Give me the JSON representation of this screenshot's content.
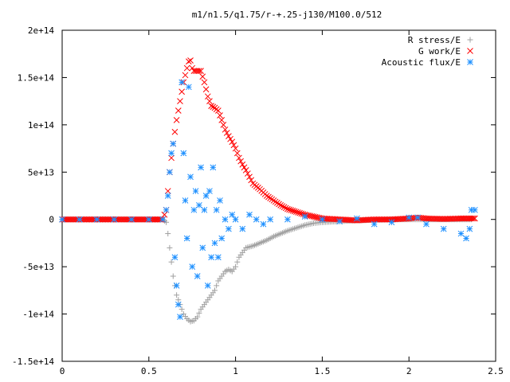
{
  "chart_data": {
    "type": "scatter",
    "title": "m1/n1.5/q1.75/r-+.25-j130/M100.0/512",
    "xlabel": "",
    "ylabel": "",
    "xlim": [
      0,
      2.5
    ],
    "ylim": [
      -150000000000000.0,
      200000000000000.0
    ],
    "x_ticks": [
      0,
      0.5,
      1,
      1.5,
      2,
      2.5
    ],
    "x_tick_labels": [
      "0",
      "0.5",
      "1",
      "1.5",
      "2",
      "2.5"
    ],
    "y_ticks": [
      -150000000000000.0,
      -100000000000000.0,
      -50000000000000.0,
      0,
      50000000000000.0,
      100000000000000.0,
      150000000000000.0,
      200000000000000.0
    ],
    "y_tick_labels": [
      "-1.5e+14",
      "-1e+14",
      "-5e+13",
      "0",
      "5e+13",
      "1e+14",
      "1.5e+14",
      "2e+14"
    ],
    "grid": false,
    "legend_position": "top-right",
    "series": [
      {
        "name": "R stress/E",
        "marker": "plus",
        "color": "#a0a0a0",
        "points": [
          [
            0.0,
            0
          ],
          [
            0.1,
            0
          ],
          [
            0.2,
            0
          ],
          [
            0.3,
            0
          ],
          [
            0.4,
            0
          ],
          [
            0.5,
            0
          ],
          [
            0.58,
            0
          ],
          [
            0.6,
            -3000000000000.0
          ],
          [
            0.61,
            -15000000000000.0
          ],
          [
            0.62,
            -30000000000000.0
          ],
          [
            0.63,
            -45000000000000.0
          ],
          [
            0.64,
            -60000000000000.0
          ],
          [
            0.65,
            -70000000000000.0
          ],
          [
            0.66,
            -80000000000000.0
          ],
          [
            0.68,
            -90000000000000.0
          ],
          [
            0.7,
            -100000000000000.0
          ],
          [
            0.72,
            -105000000000000.0
          ],
          [
            0.74,
            -108000000000000.0
          ],
          [
            0.76,
            -107000000000000.0
          ],
          [
            0.78,
            -103000000000000.0
          ],
          [
            0.8,
            -95000000000000.0
          ],
          [
            0.82,
            -90000000000000.0
          ],
          [
            0.84,
            -85000000000000.0
          ],
          [
            0.86,
            -80000000000000.0
          ],
          [
            0.88,
            -75000000000000.0
          ],
          [
            0.9,
            -65000000000000.0
          ],
          [
            0.92,
            -60000000000000.0
          ],
          [
            0.94,
            -55000000000000.0
          ],
          [
            0.96,
            -53000000000000.0
          ],
          [
            0.98,
            -55000000000000.0
          ],
          [
            1.0,
            -50000000000000.0
          ],
          [
            1.02,
            -40000000000000.0
          ],
          [
            1.04,
            -35000000000000.0
          ],
          [
            1.06,
            -30000000000000.0
          ],
          [
            1.1,
            -28000000000000.0
          ],
          [
            1.14,
            -25000000000000.0
          ],
          [
            1.18,
            -22000000000000.0
          ],
          [
            1.22,
            -18000000000000.0
          ],
          [
            1.26,
            -15000000000000.0
          ],
          [
            1.3,
            -12000000000000.0
          ],
          [
            1.35,
            -9000000000000.0
          ],
          [
            1.4,
            -6000000000000.0
          ],
          [
            1.45,
            -4000000000000.0
          ],
          [
            1.5,
            -3000000000000.0
          ],
          [
            1.6,
            -2000000000000.0
          ],
          [
            1.7,
            -1000000000000.0
          ],
          [
            1.8,
            -500000000000.0
          ],
          [
            1.9,
            0
          ],
          [
            2.0,
            0
          ],
          [
            2.1,
            0
          ],
          [
            2.2,
            0
          ],
          [
            2.3,
            0
          ],
          [
            2.36,
            0
          ]
        ]
      },
      {
        "name": "G work/E",
        "marker": "cross",
        "color": "#ff0000",
        "points": [
          [
            0.0,
            0
          ],
          [
            0.1,
            0
          ],
          [
            0.2,
            0
          ],
          [
            0.3,
            0
          ],
          [
            0.4,
            0
          ],
          [
            0.5,
            0
          ],
          [
            0.58,
            0
          ],
          [
            0.6,
            10000000000000.0
          ],
          [
            0.61,
            30000000000000.0
          ],
          [
            0.62,
            50000000000000.0
          ],
          [
            0.64,
            80000000000000.0
          ],
          [
            0.66,
            105000000000000.0
          ],
          [
            0.68,
            125000000000000.0
          ],
          [
            0.7,
            145000000000000.0
          ],
          [
            0.72,
            160000000000000.0
          ],
          [
            0.73,
            167000000000000.0
          ],
          [
            0.74,
            168000000000000.0
          ],
          [
            0.75,
            160000000000000.0
          ],
          [
            0.76,
            157000000000000.0
          ],
          [
            0.78,
            157000000000000.0
          ],
          [
            0.8,
            157000000000000.0
          ],
          [
            0.82,
            145000000000000.0
          ],
          [
            0.84,
            130000000000000.0
          ],
          [
            0.86,
            120000000000000.0
          ],
          [
            0.88,
            118000000000000.0
          ],
          [
            0.9,
            115000000000000.0
          ],
          [
            0.92,
            105000000000000.0
          ],
          [
            0.94,
            95000000000000.0
          ],
          [
            0.96,
            88000000000000.0
          ],
          [
            0.98,
            82000000000000.0
          ],
          [
            1.0,
            75000000000000.0
          ],
          [
            1.02,
            65000000000000.0
          ],
          [
            1.04,
            58000000000000.0
          ],
          [
            1.06,
            52000000000000.0
          ],
          [
            1.08,
            45000000000000.0
          ],
          [
            1.1,
            38000000000000.0
          ],
          [
            1.14,
            32000000000000.0
          ],
          [
            1.18,
            25000000000000.0
          ],
          [
            1.22,
            20000000000000.0
          ],
          [
            1.26,
            15000000000000.0
          ],
          [
            1.3,
            11000000000000.0
          ],
          [
            1.35,
            8000000000000.0
          ],
          [
            1.4,
            5000000000000.0
          ],
          [
            1.45,
            3000000000000.0
          ],
          [
            1.5,
            1000000000000.0
          ],
          [
            1.6,
            0
          ],
          [
            1.7,
            -1000000000000.0
          ],
          [
            1.8,
            0
          ],
          [
            1.9,
            0
          ],
          [
            2.0,
            1000000000000.0
          ],
          [
            2.05,
            2000000000000.0
          ],
          [
            2.1,
            1000000000000.0
          ],
          [
            2.2,
            500000000000.0
          ],
          [
            2.3,
            1000000000000.0
          ],
          [
            2.38,
            1000000000000.0
          ]
        ]
      },
      {
        "name": "Acoustic flux/E",
        "marker": "star",
        "color": "#1e90ff",
        "points": [
          [
            0.0,
            0
          ],
          [
            0.1,
            0
          ],
          [
            0.2,
            0
          ],
          [
            0.3,
            0
          ],
          [
            0.4,
            0
          ],
          [
            0.5,
            0
          ],
          [
            0.58,
            0
          ],
          [
            0.6,
            10000000000000.0
          ],
          [
            0.61,
            25000000000000.0
          ],
          [
            0.62,
            50000000000000.0
          ],
          [
            0.63,
            70000000000000.0
          ],
          [
            0.64,
            80000000000000.0
          ],
          [
            0.65,
            -40000000000000.0
          ],
          [
            0.66,
            -70000000000000.0
          ],
          [
            0.67,
            -90000000000000.0
          ],
          [
            0.68,
            -103000000000000.0
          ],
          [
            0.69,
            145000000000000.0
          ],
          [
            0.7,
            70000000000000.0
          ],
          [
            0.71,
            20000000000000.0
          ],
          [
            0.72,
            -20000000000000.0
          ],
          [
            0.73,
            140000000000000.0
          ],
          [
            0.74,
            45000000000000.0
          ],
          [
            0.75,
            -50000000000000.0
          ],
          [
            0.76,
            10000000000000.0
          ],
          [
            0.77,
            30000000000000.0
          ],
          [
            0.78,
            -60000000000000.0
          ],
          [
            0.79,
            15000000000000.0
          ],
          [
            0.8,
            55000000000000.0
          ],
          [
            0.81,
            -30000000000000.0
          ],
          [
            0.82,
            10000000000000.0
          ],
          [
            0.83,
            25000000000000.0
          ],
          [
            0.84,
            -70000000000000.0
          ],
          [
            0.85,
            30000000000000.0
          ],
          [
            0.86,
            -40000000000000.0
          ],
          [
            0.87,
            55000000000000.0
          ],
          [
            0.88,
            -25000000000000.0
          ],
          [
            0.89,
            10000000000000.0
          ],
          [
            0.9,
            -40000000000000.0
          ],
          [
            0.91,
            20000000000000.0
          ],
          [
            0.92,
            -20000000000000.0
          ],
          [
            0.94,
            0
          ],
          [
            0.96,
            -10000000000000.0
          ],
          [
            0.98,
            5000000000000.0
          ],
          [
            1.0,
            0
          ],
          [
            1.04,
            -10000000000000.0
          ],
          [
            1.08,
            5000000000000.0
          ],
          [
            1.12,
            0
          ],
          [
            1.16,
            -5000000000000.0
          ],
          [
            1.2,
            0
          ],
          [
            1.3,
            0
          ],
          [
            1.4,
            3000000000000.0
          ],
          [
            1.5,
            0
          ],
          [
            1.6,
            -2000000000000.0
          ],
          [
            1.7,
            1000000000000.0
          ],
          [
            1.8,
            -5000000000000.0
          ],
          [
            1.9,
            -3000000000000.0
          ],
          [
            2.0,
            2000000000000.0
          ],
          [
            2.05,
            2000000000000.0
          ],
          [
            2.1,
            -5000000000000.0
          ],
          [
            2.2,
            -10000000000000.0
          ],
          [
            2.3,
            -15000000000000.0
          ],
          [
            2.33,
            -20000000000000.0
          ],
          [
            2.35,
            -10000000000000.0
          ],
          [
            2.36,
            10000000000000.0
          ],
          [
            2.38,
            10000000000000.0
          ]
        ]
      }
    ]
  }
}
